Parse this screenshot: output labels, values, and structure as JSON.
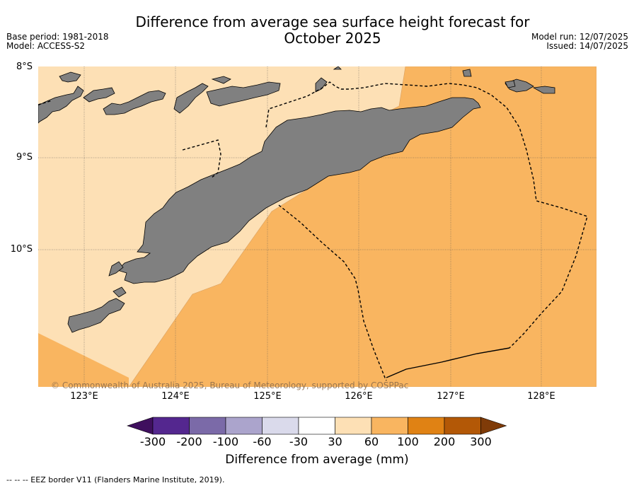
{
  "header": {
    "title_line1": "Difference from average sea surface height forecast for",
    "title_line2": "October 2025",
    "base_period": "Base period: 1981-2018",
    "model": "Model: ACCESS-S2",
    "model_run": "Model run: 12/07/2025",
    "issued": "Issued: 14/07/2025"
  },
  "map": {
    "lat_labels": [
      "8°S",
      "9°S",
      "10°S"
    ],
    "lon_labels": [
      "123°E",
      "124°E",
      "125°E",
      "126°E",
      "127°E",
      "128°E"
    ],
    "land_color": "#808080",
    "copyright": "© Commonwealth of Australia 2025, Bureau of Meteorology, supported by COSPPac"
  },
  "colorbar": {
    "colors": [
      "#3f0f5e",
      "#54278f",
      "#7b6aa8",
      "#aba4cc",
      "#dadaeb",
      "#ffffff",
      "#fde0b5",
      "#f9b560",
      "#e08214",
      "#b35806",
      "#7f3b08"
    ],
    "tick_labels": [
      "-300",
      "-200",
      "-100",
      "-60",
      "-30",
      "30",
      "60",
      "100",
      "200",
      "300"
    ],
    "title": "Difference from average (mm)"
  },
  "footnote": "--  --  -- EEZ border V11 (Flanders Marine Institute, 2019)."
}
